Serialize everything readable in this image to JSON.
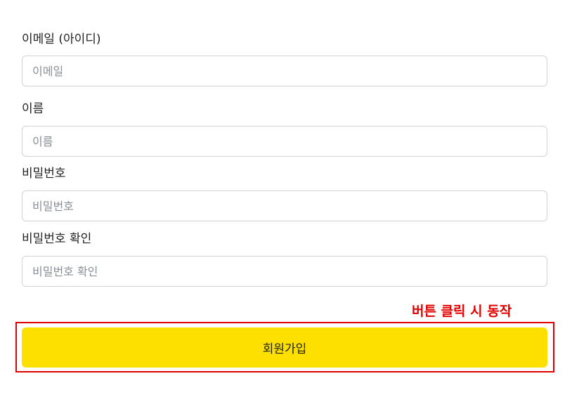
{
  "form": {
    "email": {
      "label": "이메일 (아이디)",
      "value": "",
      "placeholder": "이메일"
    },
    "name": {
      "label": "이름",
      "value": "",
      "placeholder": "이름"
    },
    "password": {
      "label": "비밀번호",
      "value": "",
      "placeholder": "비밀번호"
    },
    "password_confirm": {
      "label": "비밀번호 확인",
      "value": "",
      "placeholder": "비밀번호 확인"
    },
    "submit_label": "회원가입"
  },
  "annotation": {
    "text": "버튼 클릭 시 동작",
    "color": "#e00000"
  },
  "colors": {
    "button_background": "#fee000",
    "input_border": "#cfd3d8",
    "placeholder": "#8a8f96"
  }
}
